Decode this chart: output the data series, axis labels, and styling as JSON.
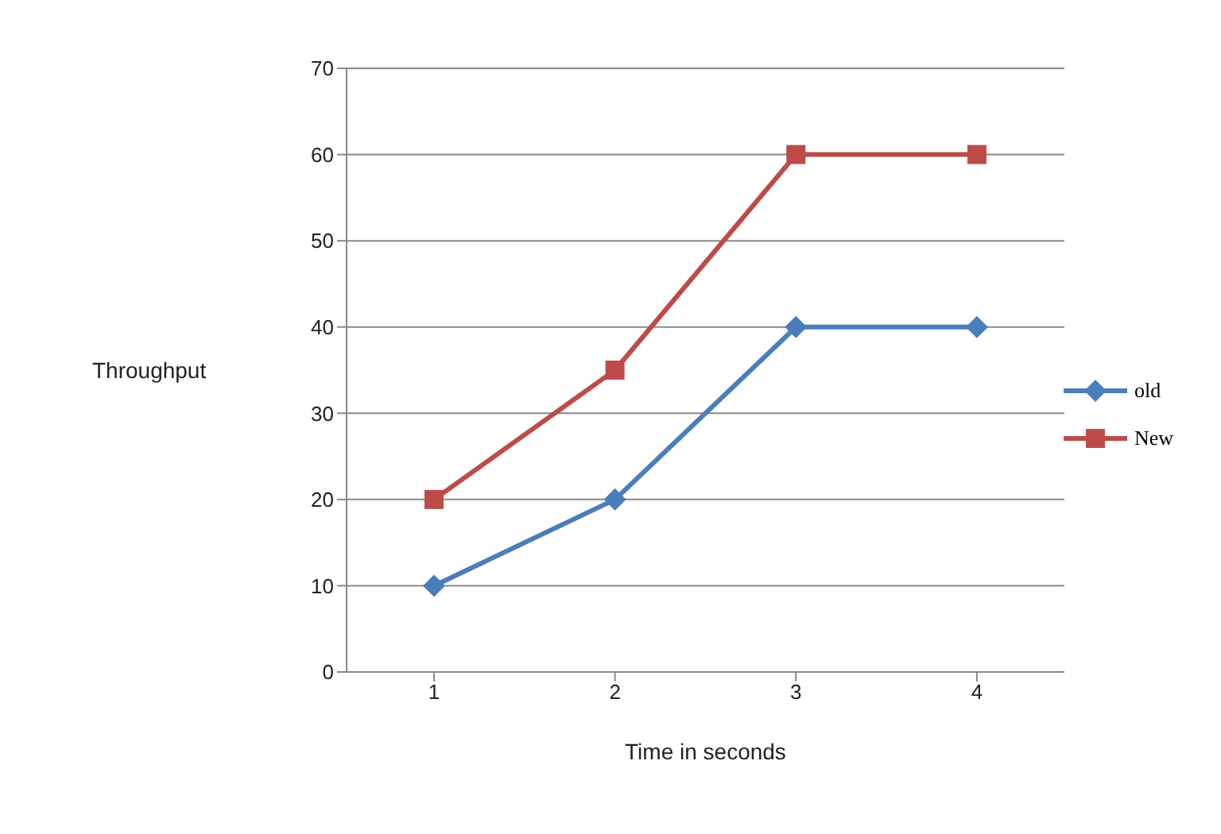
{
  "chart_data": {
    "type": "line",
    "xlabel": "Time in seconds",
    "ylabel": "Throughput",
    "categories": [
      "1",
      "2",
      "3",
      "4"
    ],
    "series": [
      {
        "name": "old",
        "color": "#4a7ebb",
        "values": [
          10,
          20,
          40,
          40
        ],
        "marker": "diamond"
      },
      {
        "name": "New",
        "color": "#be4b48",
        "values": [
          20,
          35,
          60,
          60
        ],
        "marker": "square"
      }
    ],
    "ylim": [
      0,
      70
    ],
    "yticks": [
      0,
      10,
      20,
      30,
      40,
      50,
      60,
      70
    ],
    "grid": "y",
    "legend": "right",
    "line_style": "solid"
  }
}
